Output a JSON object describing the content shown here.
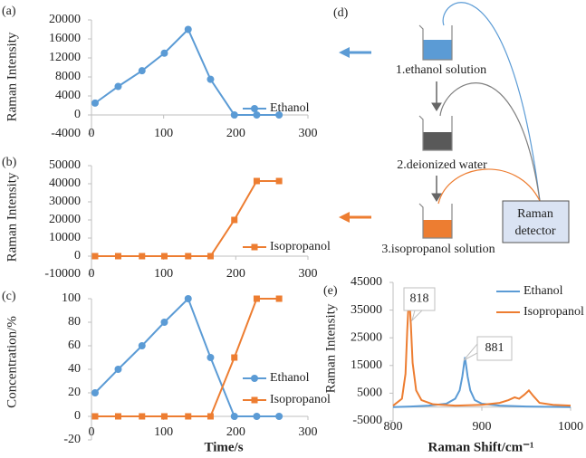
{
  "chart_data": [
    {
      "type": "line",
      "panel_label": "(a)",
      "y_label": "Raman Intensity",
      "x": [
        5,
        37,
        70,
        101,
        134,
        165,
        198,
        229,
        260
      ],
      "series": [
        {
          "name": "Ethanol",
          "color": "#5b9bd5",
          "marker": "circle",
          "values": [
            2500,
            6000,
            9300,
            13000,
            18000,
            7500,
            0,
            0,
            0
          ]
        }
      ],
      "xlim": [
        0,
        300
      ],
      "xticks": [
        0,
        100,
        200,
        300
      ],
      "ylim": [
        -4000,
        20000
      ],
      "yticks": [
        -4000,
        0,
        4000,
        8000,
        12000,
        16000,
        20000
      ]
    },
    {
      "type": "line",
      "panel_label": "(b)",
      "y_label": "Raman Intensity",
      "x": [
        5,
        37,
        70,
        101,
        134,
        165,
        198,
        229,
        260
      ],
      "series": [
        {
          "name": "Isopropanol",
          "color": "#ed7d31",
          "marker": "square",
          "values": [
            0,
            0,
            0,
            0,
            0,
            0,
            20000,
            41500,
            41500
          ]
        }
      ],
      "xlim": [
        0,
        300
      ],
      "xticks": [
        0,
        100,
        200,
        300
      ],
      "ylim": [
        -10000,
        50000
      ],
      "yticks": [
        -10000,
        0,
        10000,
        20000,
        30000,
        40000,
        50000
      ]
    },
    {
      "type": "line",
      "panel_label": "(c)",
      "y_label": "Concentration/%",
      "x_label": "Time/s",
      "x": [
        5,
        37,
        70,
        101,
        134,
        165,
        198,
        229,
        260
      ],
      "series": [
        {
          "name": "Ethanol",
          "color": "#5b9bd5",
          "marker": "circle",
          "values": [
            20,
            40,
            60,
            80,
            100,
            50,
            0,
            0,
            0
          ]
        },
        {
          "name": "Isopropanol",
          "color": "#ed7d31",
          "marker": "square",
          "values": [
            0,
            0,
            0,
            0,
            0,
            0,
            50,
            100,
            100
          ]
        }
      ],
      "xlim": [
        0,
        300
      ],
      "xticks": [
        0,
        100,
        200,
        300
      ],
      "ylim": [
        -20,
        100
      ],
      "yticks": [
        -20,
        0,
        20,
        40,
        60,
        80,
        100
      ]
    },
    {
      "type": "line",
      "panel_label": "(e)",
      "y_label": "Raman Intensity",
      "x_label": "Raman Shift/cm⁻¹",
      "series": [
        {
          "name": "Ethanol",
          "color": "#5b9bd5",
          "marker": "none",
          "x": [
            800,
            820,
            840,
            860,
            870,
            875,
            878,
            881,
            884,
            887,
            892,
            900,
            920,
            950,
            1000
          ],
          "values": [
            0,
            200,
            500,
            1200,
            3000,
            6000,
            11000,
            18000,
            11000,
            6000,
            2500,
            1200,
            500,
            200,
            0
          ]
        },
        {
          "name": "Isopropanol",
          "color": "#ed7d31",
          "marker": "none",
          "x": [
            800,
            810,
            814,
            816,
            818,
            820,
            822,
            826,
            832,
            845,
            870,
            900,
            920,
            930,
            937,
            942,
            948,
            953,
            958,
            965,
            980,
            1000
          ],
          "values": [
            500,
            3000,
            12000,
            28000,
            41000,
            30000,
            16000,
            6000,
            2500,
            1000,
            500,
            800,
            1500,
            2500,
            3500,
            3000,
            4500,
            6000,
            4000,
            1500,
            800,
            500
          ]
        }
      ],
      "annotations": [
        "818",
        "881"
      ],
      "xlim": [
        800,
        1000
      ],
      "xticks": [
        800,
        900,
        1000
      ],
      "ylim": [
        -5000,
        45000
      ],
      "yticks": [
        -5000,
        5000,
        15000,
        25000,
        35000,
        45000
      ]
    }
  ],
  "diagram": {
    "panel_label": "(d)",
    "steps": [
      "1.ethanol solution",
      "2.deionized water",
      "3.isopropanol solution"
    ],
    "detector": [
      "Raman",
      "detector"
    ]
  }
}
